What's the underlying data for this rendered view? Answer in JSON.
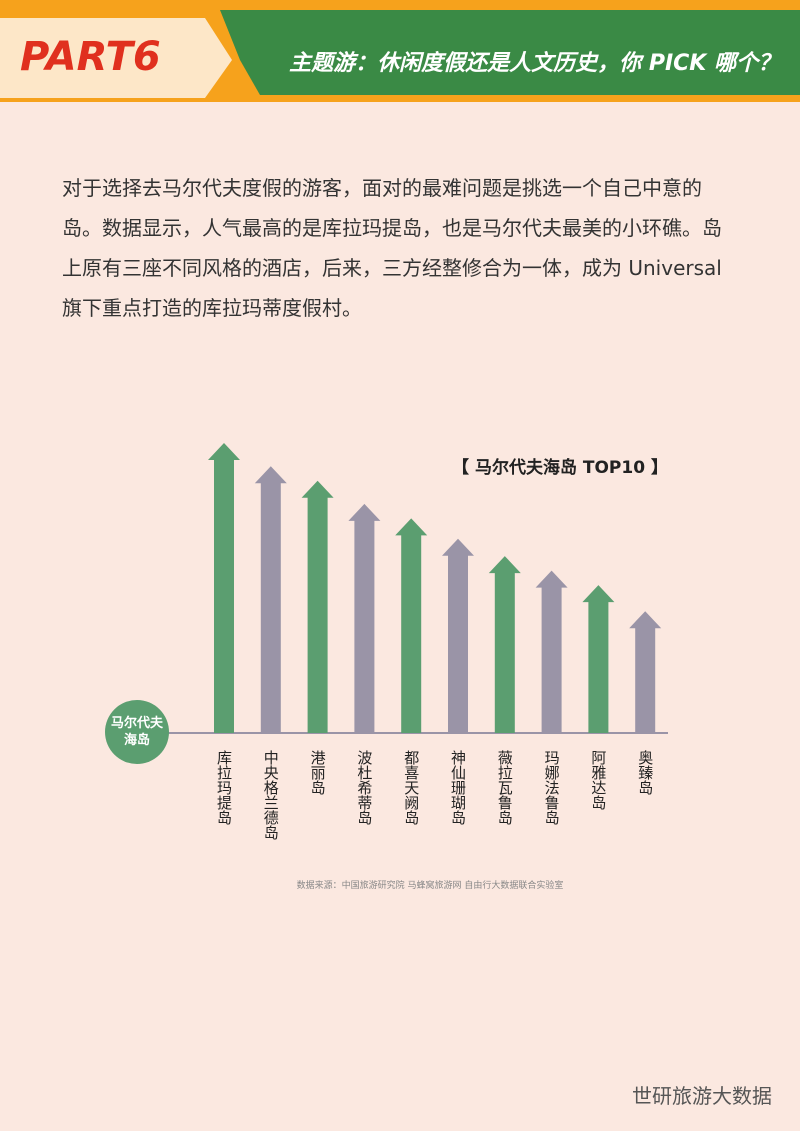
{
  "header": {
    "part": "PART6",
    "title": "主题游：休闲度假还是人文历史，你 PICK 哪个？"
  },
  "body": {
    "paragraph": "对于选择去马尔代夫度假的游客，面对的最难问题是挑选一个自己中意的岛。数据显示，人气最高的是库拉玛提岛，也是马尔代夫最美的小环礁。岛上原有三座不同风格的酒店，后来，三方经整修合为一体，成为 Universal 旗下重点打造的库拉玛蒂度假村。"
  },
  "chart_data": {
    "type": "bar",
    "title": "【 马尔代夫海岛 TOP10 】",
    "axis_label": "马尔代夫海岛",
    "categories": [
      "库拉玛提岛",
      "中央格兰德岛",
      "港丽岛",
      "波杜希蒂岛",
      "都喜天阙岛",
      "神仙珊瑚岛",
      "薇拉瓦鲁岛",
      "玛娜法鲁岛",
      "阿雅达岛",
      "奥臻岛"
    ],
    "values": [
      100,
      92,
      87,
      79,
      74,
      67,
      61,
      56,
      51,
      42
    ],
    "colors": [
      "#5b9e70",
      "#9a94a7"
    ],
    "source": "数据来源：中国旅游研究院 马蜂窝旅游网 自由行大数据联合实验室"
  },
  "footer": {
    "brand": "世研旅游大数据"
  }
}
